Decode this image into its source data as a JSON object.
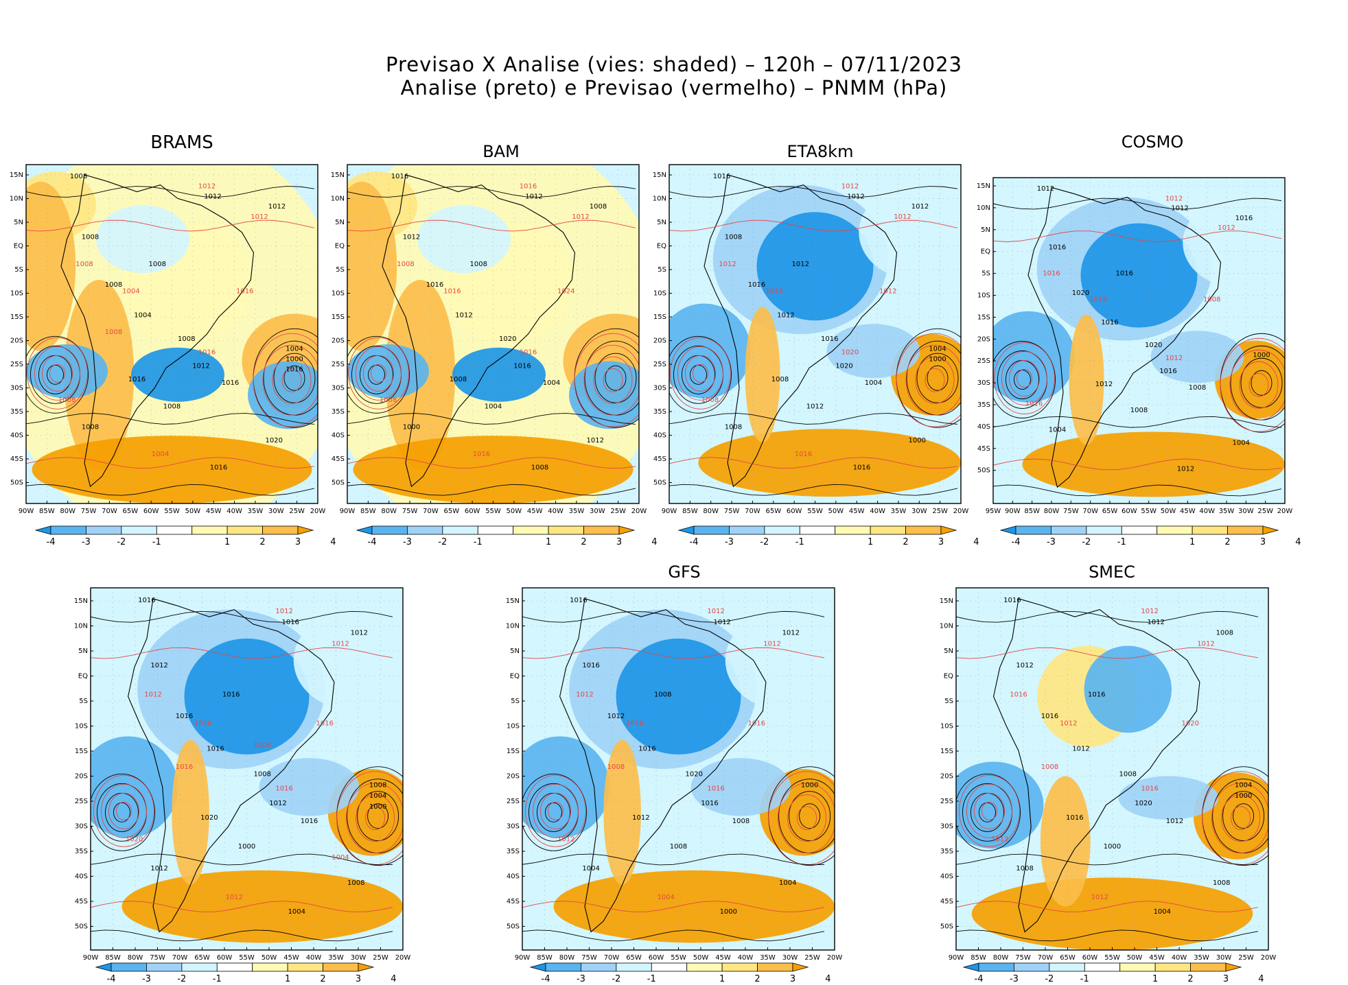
{
  "title": {
    "line1": "Previsao X Analise (vies: shaded) – 120h – 07/11/2023",
    "line2": "Analise (preto) e Previsao (vermelho) – PNMM (hPa)"
  },
  "colors": {
    "neg4": "#1e96e6",
    "neg3": "#5ab4f0",
    "neg2": "#a0d2f7",
    "neg1": "#d2f5ff",
    "zero": "#ffffff",
    "pos1": "#fffab4",
    "pos2": "#ffe682",
    "pos3": "#fcbe4b",
    "pos4": "#f5a000",
    "analysis_contour": "#000000",
    "forecast_contour": "#e64646"
  },
  "colorbar": {
    "labels": [
      "-4",
      "-3",
      "-2",
      "-1",
      "1",
      "2",
      "3",
      "4"
    ]
  },
  "axes": {
    "lat_ticks": [
      "15N",
      "10N",
      "5N",
      "EQ",
      "5S",
      "10S",
      "15S",
      "20S",
      "25S",
      "30S",
      "35S",
      "40S",
      "45S",
      "50S"
    ],
    "lon_ticks": [
      "90W",
      "85W",
      "80W",
      "75W",
      "70W",
      "65W",
      "60W",
      "55W",
      "50W",
      "45W",
      "40W",
      "35W",
      "30W",
      "25W",
      "20W"
    ],
    "lon_ticks_cosmo": [
      "95W",
      "90W",
      "85W",
      "80W",
      "75W",
      "70W",
      "65W",
      "60W",
      "55W",
      "50W",
      "45W",
      "40W",
      "35W",
      "30W",
      "25W",
      "20W"
    ]
  },
  "panels": [
    {
      "id": "brams",
      "name": "BRAMS",
      "bias": "warm",
      "labels_black": [
        "1008",
        "1012",
        "1012",
        "1008",
        "1008",
        "1008",
        "1004",
        "1008",
        "1012",
        "1016",
        "1016",
        "1020",
        "1016",
        "1008",
        "1008",
        "1004",
        "1000",
        "1016"
      ],
      "labels_red": [
        "1012",
        "1012",
        "1008",
        "1004",
        "1016",
        "1016",
        "1008",
        "1004",
        "1008"
      ]
    },
    {
      "id": "bam",
      "name": "BAM",
      "bias": "warm",
      "labels_black": [
        "1016",
        "1012",
        "1008",
        "1012",
        "1008",
        "1016",
        "1012",
        "1020",
        "1016",
        "1008",
        "1004",
        "1012",
        "1008",
        "1004",
        "1000"
      ],
      "labels_red": [
        "1016",
        "1012",
        "1008",
        "1016",
        "1024",
        "1016",
        "1008",
        "1016"
      ]
    },
    {
      "id": "eta8km",
      "name": "ETA8km",
      "bias": "cold",
      "labels_black": [
        "1016",
        "1012",
        "1012",
        "1008",
        "1012",
        "1016",
        "1012",
        "1016",
        "1020",
        "1008",
        "1004",
        "1000",
        "1016",
        "1012",
        "1008",
        "1004",
        "1000"
      ],
      "labels_red": [
        "1012",
        "1012",
        "1012",
        "1016",
        "1012",
        "1020",
        "1008",
        "1016"
      ]
    },
    {
      "id": "cosmo",
      "name": "COSMO",
      "bias": "cold",
      "labels_black": [
        "1012",
        "1012",
        "1016",
        "1016",
        "1016",
        "1020",
        "1016",
        "1020",
        "1016",
        "1012",
        "1008",
        "1004",
        "1012",
        "1008",
        "1004",
        "1000"
      ],
      "labels_red": [
        "1012",
        "1012",
        "1016",
        "1016",
        "1008",
        "1012",
        "1016"
      ]
    },
    {
      "id": "unnamed",
      "name": "",
      "bias": "cold",
      "labels_black": [
        "1016",
        "1016",
        "1012",
        "1012",
        "1016",
        "1016",
        "1016",
        "1008",
        "1012",
        "1020",
        "1016",
        "1008",
        "1004",
        "1000",
        "1012",
        "1008",
        "1004",
        "1000"
      ],
      "labels_red": [
        "1012",
        "1012",
        "1012",
        "1016",
        "1016",
        "1016",
        "1020",
        "1012",
        "1016",
        "1008",
        "1004"
      ]
    },
    {
      "id": "gfs",
      "name": "GFS",
      "bias": "cold",
      "labels_black": [
        "1016",
        "1012",
        "1012",
        "1016",
        "1008",
        "1012",
        "1016",
        "1020",
        "1016",
        "1012",
        "1008",
        "1004",
        "1000",
        "1008",
        "1004",
        "1000"
      ],
      "labels_red": [
        "1012",
        "1012",
        "1012",
        "1016",
        "1016",
        "1016",
        "1012",
        "1004",
        "1008"
      ]
    },
    {
      "id": "smec",
      "name": "SMEC",
      "bias": "mixed",
      "labels_black": [
        "1016",
        "1012",
        "1008",
        "1012",
        "1016",
        "1016",
        "1012",
        "1008",
        "1020",
        "1016",
        "1012",
        "1008",
        "1004",
        "1000",
        "1008",
        "1004",
        "1000"
      ],
      "labels_red": [
        "1012",
        "1012",
        "1016",
        "1012",
        "1020",
        "1016",
        "1012",
        "1012",
        "1008"
      ]
    }
  ]
}
